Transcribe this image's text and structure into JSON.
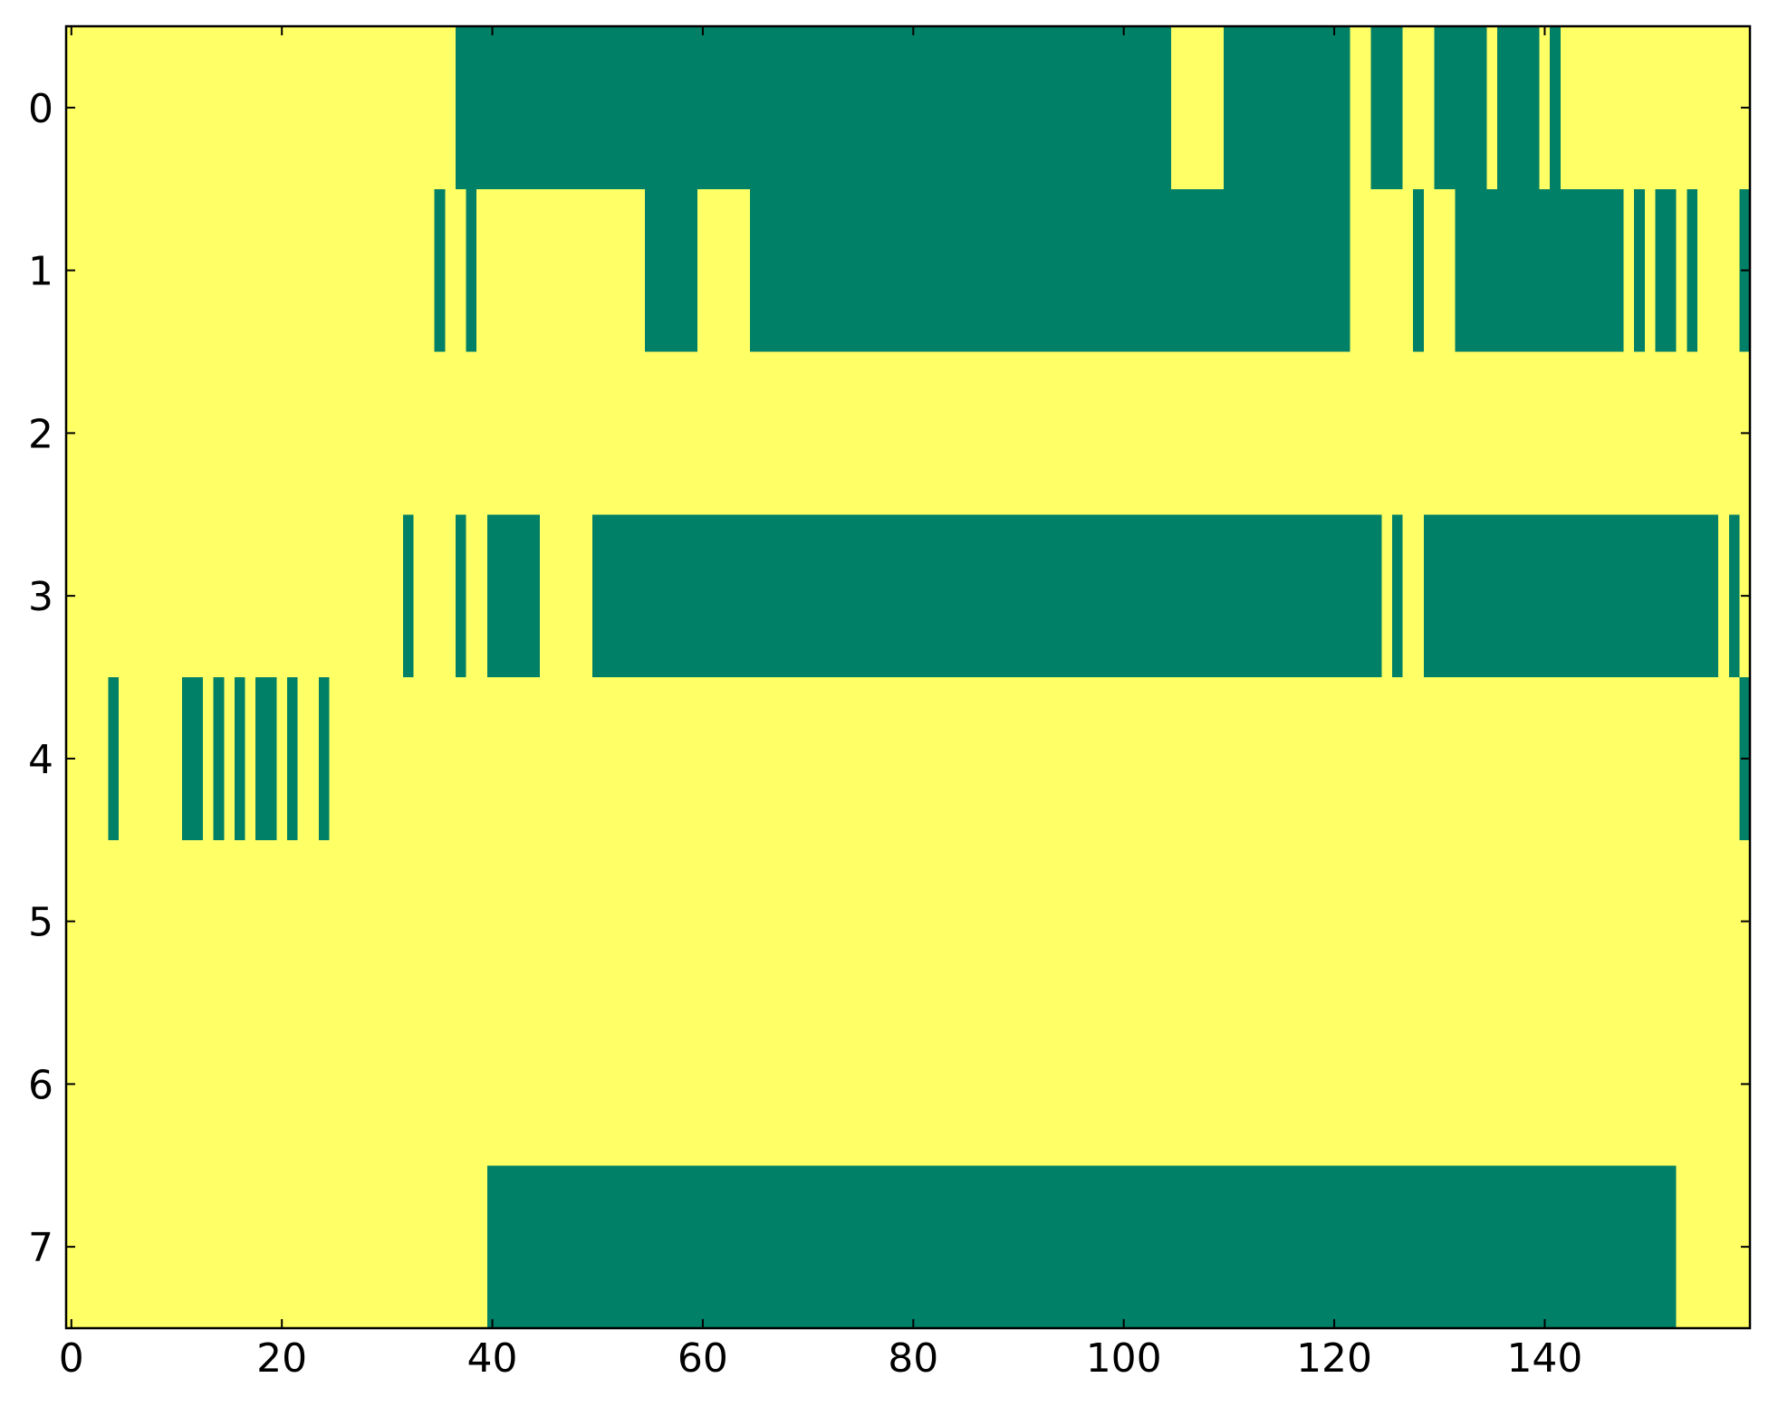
{
  "chart_data": {
    "type": "heatmap",
    "z": [
      [
        1,
        1,
        1,
        1,
        1,
        1,
        1,
        1,
        1,
        1,
        1,
        1,
        1,
        1,
        1,
        1,
        1,
        1,
        1,
        1,
        1,
        1,
        1,
        1,
        1,
        1,
        1,
        1,
        1,
        1,
        1,
        1,
        1,
        1,
        1,
        1,
        1,
        0,
        0,
        0,
        0,
        0,
        0,
        0,
        0,
        0,
        0,
        0,
        0,
        0,
        0,
        0,
        0,
        0,
        0,
        0,
        0,
        0,
        0,
        0,
        0,
        0,
        0,
        0,
        0,
        0,
        0,
        0,
        0,
        0,
        0,
        0,
        0,
        0,
        0,
        0,
        0,
        0,
        0,
        0,
        0,
        0,
        0,
        0,
        0,
        0,
        0,
        0,
        0,
        0,
        0,
        0,
        0,
        0,
        0,
        0,
        0,
        0,
        0,
        0,
        0,
        0,
        0,
        0,
        0,
        1,
        1,
        1,
        1,
        1,
        0,
        0,
        0,
        0,
        0,
        0,
        0,
        0,
        0,
        0,
        0,
        0,
        1,
        1,
        0,
        0,
        0,
        1,
        1,
        1,
        0,
        0,
        0,
        0,
        0,
        1,
        0,
        0,
        0,
        0,
        1,
        0,
        1,
        1,
        1,
        1,
        1,
        1,
        1,
        1,
        1,
        1,
        1,
        1,
        1,
        1,
        1,
        1,
        1,
        1
      ],
      [
        1,
        1,
        1,
        1,
        1,
        1,
        1,
        1,
        1,
        1,
        1,
        1,
        1,
        1,
        1,
        1,
        1,
        1,
        1,
        1,
        1,
        1,
        1,
        1,
        1,
        1,
        1,
        1,
        1,
        1,
        1,
        1,
        1,
        1,
        1,
        0,
        1,
        1,
        0,
        1,
        1,
        1,
        1,
        1,
        1,
        1,
        1,
        1,
        1,
        1,
        1,
        1,
        1,
        1,
        1,
        0,
        0,
        0,
        0,
        0,
        1,
        1,
        1,
        1,
        1,
        0,
        0,
        0,
        0,
        0,
        0,
        0,
        0,
        0,
        0,
        0,
        0,
        0,
        0,
        0,
        0,
        0,
        0,
        0,
        0,
        0,
        0,
        0,
        0,
        0,
        0,
        0,
        0,
        0,
        0,
        0,
        0,
        0,
        0,
        0,
        0,
        0,
        0,
        0,
        0,
        0,
        0,
        0,
        0,
        0,
        0,
        0,
        0,
        0,
        0,
        0,
        0,
        0,
        0,
        0,
        0,
        0,
        1,
        1,
        1,
        1,
        1,
        1,
        0,
        1,
        1,
        1,
        0,
        0,
        0,
        0,
        0,
        0,
        0,
        0,
        0,
        0,
        0,
        0,
        0,
        0,
        0,
        0,
        1,
        0,
        1,
        0,
        0,
        1,
        0,
        1,
        1,
        1,
        1,
        0
      ],
      [
        1,
        1,
        1,
        1,
        1,
        1,
        1,
        1,
        1,
        1,
        1,
        1,
        1,
        1,
        1,
        1,
        1,
        1,
        1,
        1,
        1,
        1,
        1,
        1,
        1,
        1,
        1,
        1,
        1,
        1,
        1,
        1,
        1,
        1,
        1,
        1,
        1,
        1,
        1,
        1,
        1,
        1,
        1,
        1,
        1,
        1,
        1,
        1,
        1,
        1,
        1,
        1,
        1,
        1,
        1,
        1,
        1,
        1,
        1,
        1,
        1,
        1,
        1,
        1,
        1,
        1,
        1,
        1,
        1,
        1,
        1,
        1,
        1,
        1,
        1,
        1,
        1,
        1,
        1,
        1,
        1,
        1,
        1,
        1,
        1,
        1,
        1,
        1,
        1,
        1,
        1,
        1,
        1,
        1,
        1,
        1,
        1,
        1,
        1,
        1,
        1,
        1,
        1,
        1,
        1,
        1,
        1,
        1,
        1,
        1,
        1,
        1,
        1,
        1,
        1,
        1,
        1,
        1,
        1,
        1,
        1,
        1,
        1,
        1,
        1,
        1,
        1,
        1,
        1,
        1,
        1,
        1,
        1,
        1,
        1,
        1,
        1,
        1,
        1,
        1,
        1,
        1,
        1,
        1,
        1,
        1,
        1,
        1,
        1,
        1,
        1,
        1,
        1,
        1,
        1,
        1,
        1,
        1,
        1,
        1
      ],
      [
        1,
        1,
        1,
        1,
        1,
        1,
        1,
        1,
        1,
        1,
        1,
        1,
        1,
        1,
        1,
        1,
        1,
        1,
        1,
        1,
        1,
        1,
        1,
        1,
        1,
        1,
        1,
        1,
        1,
        1,
        1,
        1,
        0,
        1,
        1,
        1,
        1,
        0,
        1,
        1,
        0,
        0,
        0,
        0,
        0,
        1,
        1,
        1,
        1,
        1,
        0,
        0,
        0,
        0,
        0,
        0,
        0,
        0,
        0,
        0,
        0,
        0,
        0,
        0,
        0,
        0,
        0,
        0,
        0,
        0,
        0,
        0,
        0,
        0,
        0,
        0,
        0,
        0,
        0,
        0,
        0,
        0,
        0,
        0,
        0,
        0,
        0,
        0,
        0,
        0,
        0,
        0,
        0,
        0,
        0,
        0,
        0,
        0,
        0,
        0,
        0,
        0,
        0,
        0,
        0,
        0,
        0,
        0,
        0,
        0,
        0,
        0,
        0,
        0,
        0,
        0,
        0,
        0,
        0,
        0,
        0,
        0,
        0,
        0,
        0,
        1,
        0,
        1,
        1,
        0,
        0,
        0,
        0,
        0,
        0,
        0,
        0,
        0,
        0,
        0,
        0,
        0,
        0,
        0,
        0,
        0,
        0,
        0,
        0,
        0,
        0,
        0,
        0,
        0,
        0,
        0,
        0,
        1,
        0,
        1
      ],
      [
        1,
        1,
        1,
        1,
        0,
        1,
        1,
        1,
        1,
        1,
        1,
        0,
        0,
        1,
        0,
        1,
        0,
        1,
        0,
        0,
        1,
        0,
        1,
        1,
        0,
        1,
        1,
        1,
        1,
        1,
        1,
        1,
        1,
        1,
        1,
        1,
        1,
        1,
        1,
        1,
        1,
        1,
        1,
        1,
        1,
        1,
        1,
        1,
        1,
        1,
        1,
        1,
        1,
        1,
        1,
        1,
        1,
        1,
        1,
        1,
        1,
        1,
        1,
        1,
        1,
        1,
        1,
        1,
        1,
        1,
        1,
        1,
        1,
        1,
        1,
        1,
        1,
        1,
        1,
        1,
        1,
        1,
        1,
        1,
        1,
        1,
        1,
        1,
        1,
        1,
        1,
        1,
        1,
        1,
        1,
        1,
        1,
        1,
        1,
        1,
        1,
        1,
        1,
        1,
        1,
        1,
        1,
        1,
        1,
        1,
        1,
        1,
        1,
        1,
        1,
        1,
        1,
        1,
        1,
        1,
        1,
        1,
        1,
        1,
        1,
        1,
        1,
        1,
        1,
        1,
        1,
        1,
        1,
        1,
        1,
        1,
        1,
        1,
        1,
        1,
        1,
        1,
        1,
        1,
        1,
        1,
        1,
        1,
        1,
        1,
        1,
        1,
        1,
        1,
        1,
        1,
        1,
        1,
        1,
        0
      ],
      [
        1,
        1,
        1,
        1,
        1,
        1,
        1,
        1,
        1,
        1,
        1,
        1,
        1,
        1,
        1,
        1,
        1,
        1,
        1,
        1,
        1,
        1,
        1,
        1,
        1,
        1,
        1,
        1,
        1,
        1,
        1,
        1,
        1,
        1,
        1,
        1,
        1,
        1,
        1,
        1,
        1,
        1,
        1,
        1,
        1,
        1,
        1,
        1,
        1,
        1,
        1,
        1,
        1,
        1,
        1,
        1,
        1,
        1,
        1,
        1,
        1,
        1,
        1,
        1,
        1,
        1,
        1,
        1,
        1,
        1,
        1,
        1,
        1,
        1,
        1,
        1,
        1,
        1,
        1,
        1,
        1,
        1,
        1,
        1,
        1,
        1,
        1,
        1,
        1,
        1,
        1,
        1,
        1,
        1,
        1,
        1,
        1,
        1,
        1,
        1,
        1,
        1,
        1,
        1,
        1,
        1,
        1,
        1,
        1,
        1,
        1,
        1,
        1,
        1,
        1,
        1,
        1,
        1,
        1,
        1,
        1,
        1,
        1,
        1,
        1,
        1,
        1,
        1,
        1,
        1,
        1,
        1,
        1,
        1,
        1,
        1,
        1,
        1,
        1,
        1,
        1,
        1,
        1,
        1,
        1,
        1,
        1,
        1,
        1,
        1,
        1,
        1,
        1,
        1,
        1,
        1,
        1,
        1,
        1,
        1
      ],
      [
        1,
        1,
        1,
        1,
        1,
        1,
        1,
        1,
        1,
        1,
        1,
        1,
        1,
        1,
        1,
        1,
        1,
        1,
        1,
        1,
        1,
        1,
        1,
        1,
        1,
        1,
        1,
        1,
        1,
        1,
        1,
        1,
        1,
        1,
        1,
        1,
        1,
        1,
        1,
        1,
        1,
        1,
        1,
        1,
        1,
        1,
        1,
        1,
        1,
        1,
        1,
        1,
        1,
        1,
        1,
        1,
        1,
        1,
        1,
        1,
        1,
        1,
        1,
        1,
        1,
        1,
        1,
        1,
        1,
        1,
        1,
        1,
        1,
        1,
        1,
        1,
        1,
        1,
        1,
        1,
        1,
        1,
        1,
        1,
        1,
        1,
        1,
        1,
        1,
        1,
        1,
        1,
        1,
        1,
        1,
        1,
        1,
        1,
        1,
        1,
        1,
        1,
        1,
        1,
        1,
        1,
        1,
        1,
        1,
        1,
        1,
        1,
        1,
        1,
        1,
        1,
        1,
        1,
        1,
        1,
        1,
        1,
        1,
        1,
        1,
        1,
        1,
        1,
        1,
        1,
        1,
        1,
        1,
        1,
        1,
        1,
        1,
        1,
        1,
        1,
        1,
        1,
        1,
        1,
        1,
        1,
        1,
        1,
        1,
        1,
        1,
        1,
        1,
        1,
        1,
        1,
        1,
        1,
        1,
        1
      ],
      [
        1,
        1,
        1,
        1,
        1,
        1,
        1,
        1,
        1,
        1,
        1,
        1,
        1,
        1,
        1,
        1,
        1,
        1,
        1,
        1,
        1,
        1,
        1,
        1,
        1,
        1,
        1,
        1,
        1,
        1,
        1,
        1,
        1,
        1,
        1,
        1,
        1,
        1,
        1,
        1,
        0,
        0,
        0,
        0,
        0,
        0,
        0,
        0,
        0,
        0,
        0,
        0,
        0,
        0,
        0,
        0,
        0,
        0,
        0,
        0,
        0,
        0,
        0,
        0,
        0,
        0,
        0,
        0,
        0,
        0,
        0,
        0,
        0,
        0,
        0,
        0,
        0,
        0,
        0,
        0,
        0,
        0,
        0,
        0,
        0,
        0,
        0,
        0,
        0,
        0,
        0,
        0,
        0,
        0,
        0,
        0,
        0,
        0,
        0,
        0,
        0,
        0,
        0,
        0,
        0,
        0,
        0,
        0,
        0,
        0,
        0,
        0,
        0,
        0,
        0,
        0,
        0,
        0,
        0,
        0,
        0,
        0,
        0,
        0,
        0,
        0,
        0,
        0,
        0,
        0,
        0,
        0,
        0,
        0,
        0,
        0,
        0,
        0,
        0,
        0,
        0,
        0,
        0,
        0,
        0,
        0,
        0,
        0,
        0,
        0,
        0,
        0,
        0,
        1,
        1,
        1,
        1,
        1,
        1,
        1
      ]
    ],
    "colorscale": [
      "#008066",
      "#ffff66"
    ],
    "xlim": [
      -0.5,
      159.5
    ],
    "ylim": [
      7.5,
      -0.5
    ],
    "xticks": [
      0,
      20,
      40,
      60,
      80,
      100,
      120,
      140
    ],
    "yticks": [
      0,
      1,
      2,
      3,
      4,
      5,
      6,
      7
    ]
  }
}
